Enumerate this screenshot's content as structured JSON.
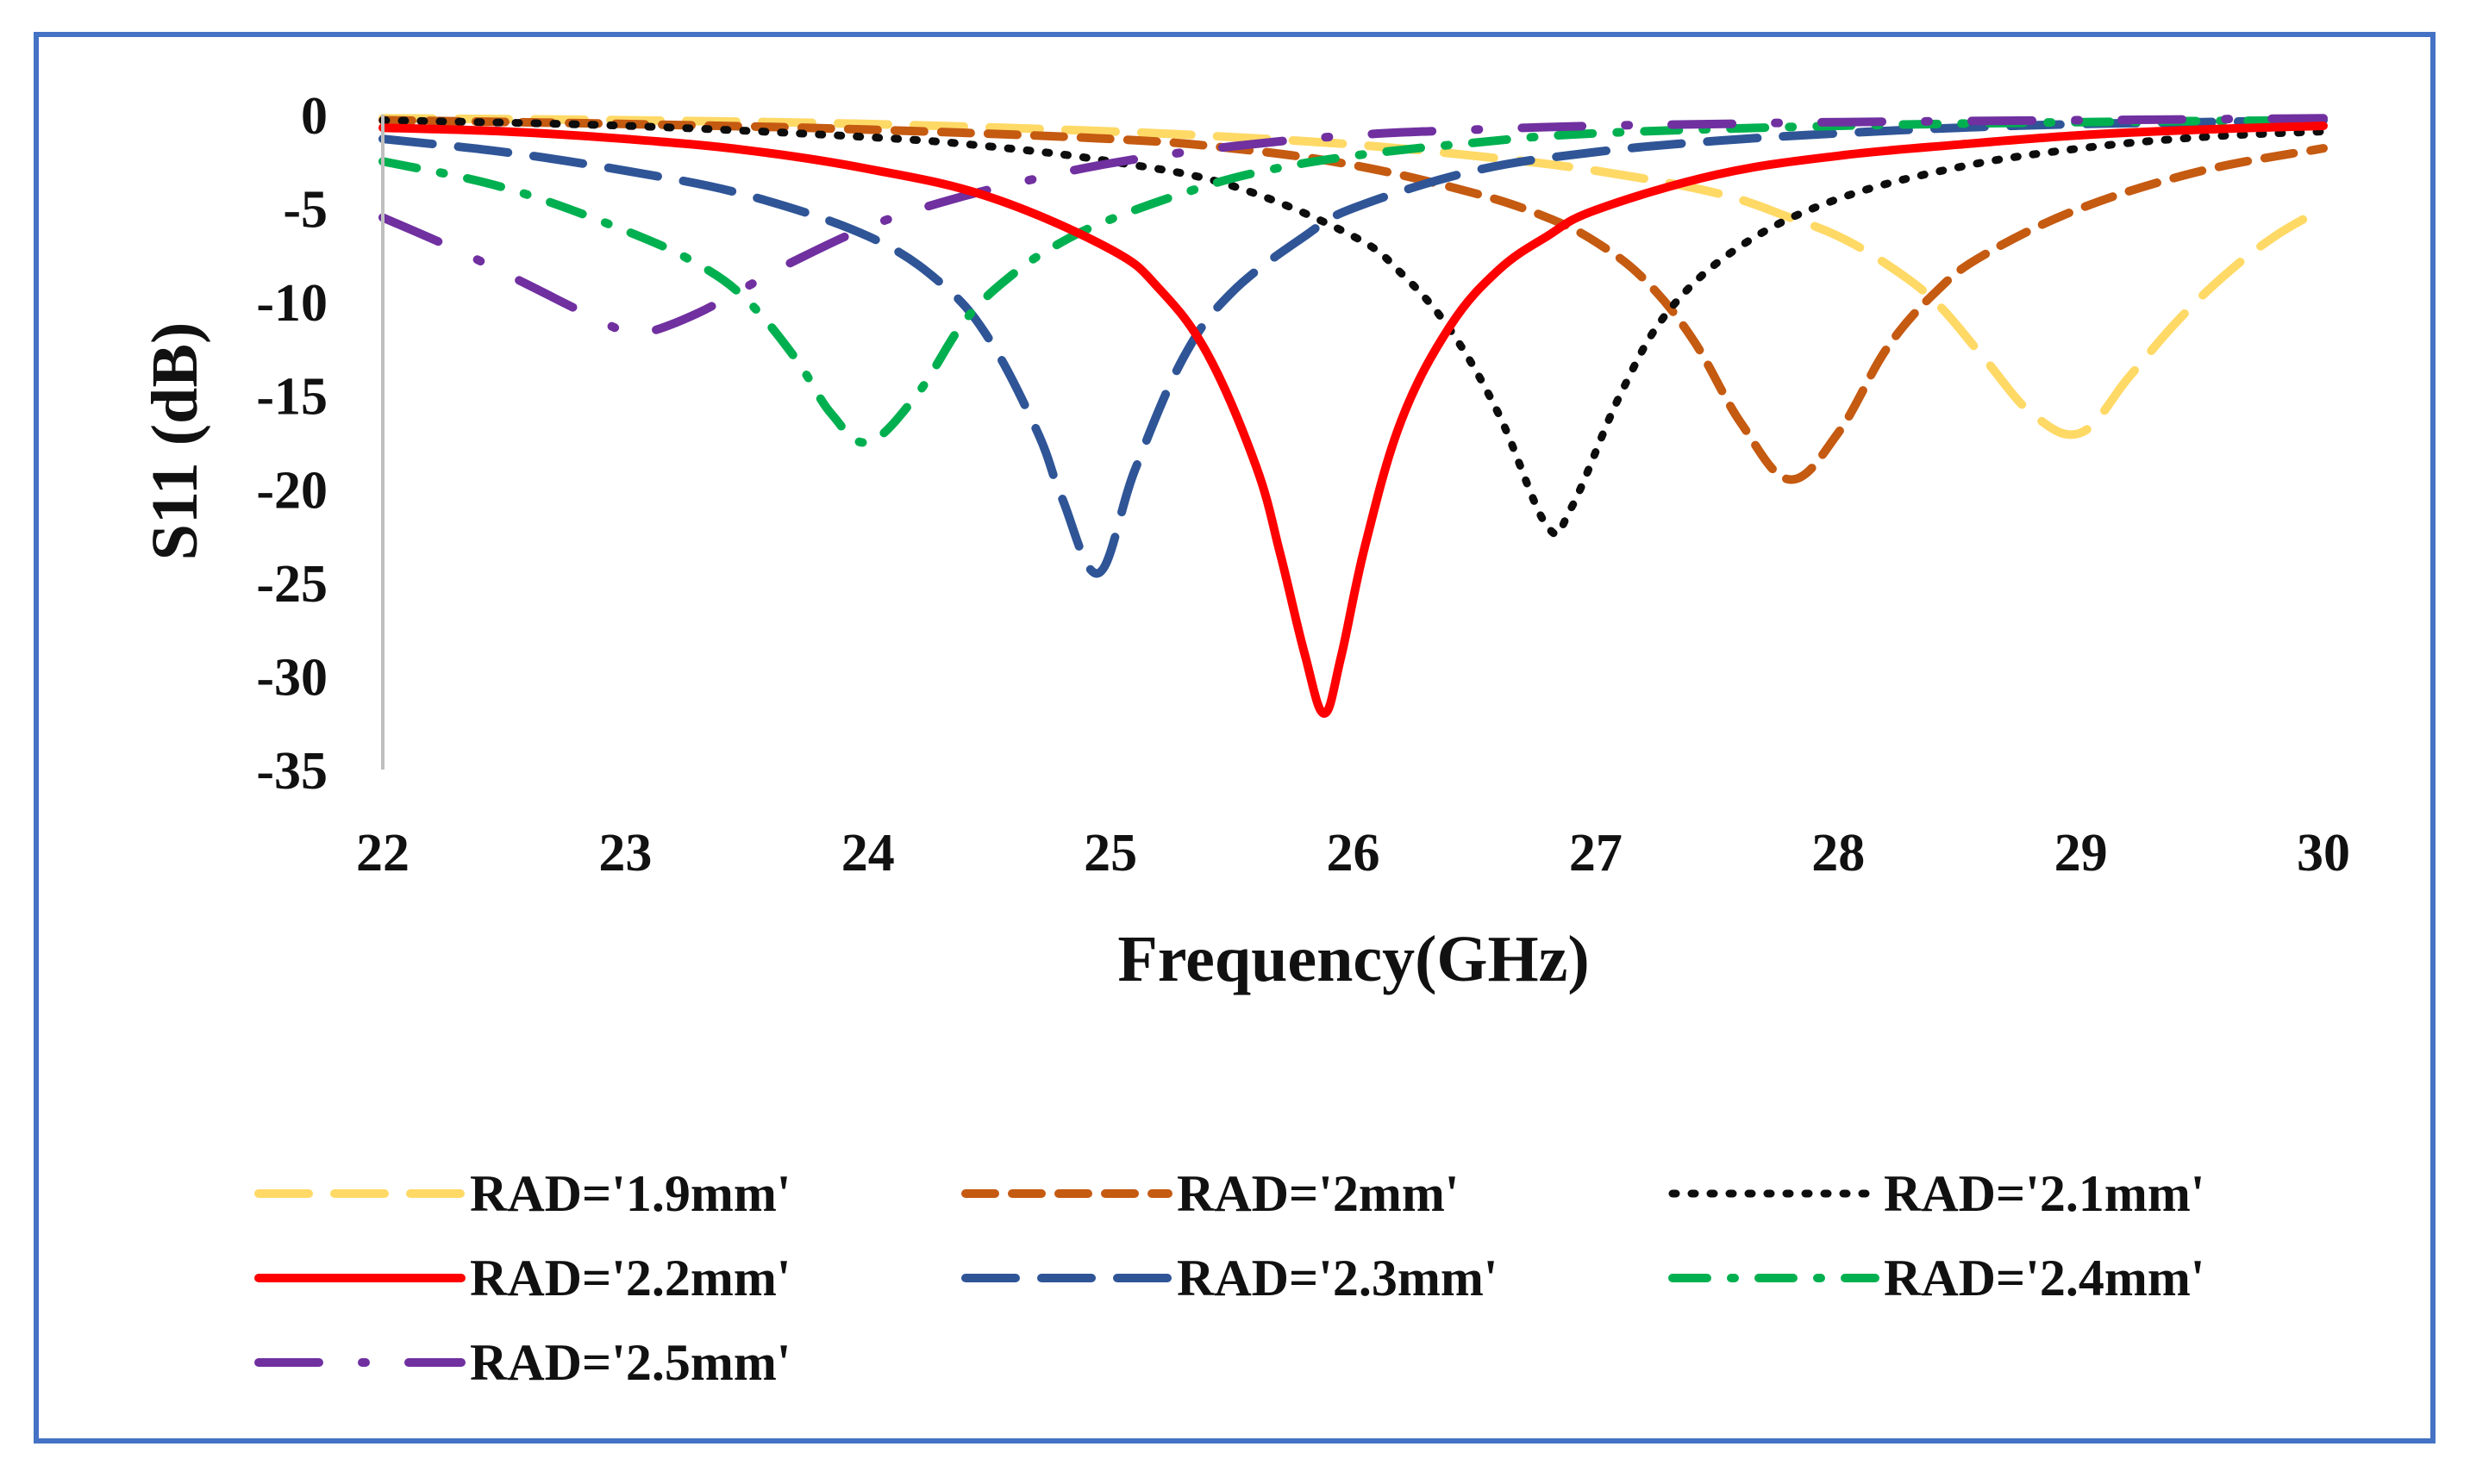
{
  "chart_data": {
    "type": "line",
    "title": "",
    "xlabel": "Frequency(GHz)",
    "ylabel": "S11 (dB)",
    "xlim": [
      22,
      30
    ],
    "ylim": [
      -35,
      0
    ],
    "xticks": [
      "22",
      "23",
      "24",
      "25",
      "26",
      "27",
      "28",
      "29",
      "30"
    ],
    "yticks": [
      "0",
      "-5",
      "-10",
      "-15",
      "-20",
      "-25",
      "-30",
      "-35"
    ],
    "grid": false,
    "legend_position": "bottom",
    "colors": {
      "frame": "#4472c4",
      "axis": "#bfbfbf"
    },
    "series": [
      {
        "name": "RAD='1.9mm'",
        "color": "#ffd966",
        "style": "long-dash",
        "x": [
          22,
          23,
          24,
          25,
          25.5,
          26,
          26.5,
          27,
          27.5,
          27.8,
          28,
          28.2,
          28.4,
          28.6,
          28.8,
          29,
          29.2,
          29.4,
          29.6,
          29.8,
          30
        ],
        "y": [
          -0.2,
          -0.3,
          -0.5,
          -0.9,
          -1.2,
          -1.6,
          -2.2,
          -3.0,
          -4.2,
          -5.5,
          -6.5,
          -8.0,
          -10.0,
          -13.0,
          -16.0,
          -17.0,
          -14.0,
          -11.0,
          -8.5,
          -6.5,
          -5.0
        ]
      },
      {
        "name": "RAD='2mm'",
        "color": "#c55a11",
        "style": "dash",
        "x": [
          22,
          23,
          24,
          25,
          25.5,
          26,
          26.5,
          26.8,
          27,
          27.2,
          27.4,
          27.6,
          27.8,
          28,
          28.2,
          28.4,
          28.6,
          29,
          29.5,
          30
        ],
        "y": [
          -0.3,
          -0.5,
          -0.8,
          -1.3,
          -1.8,
          -2.7,
          -4.2,
          -5.5,
          -6.8,
          -8.8,
          -12.0,
          -16.5,
          -19.5,
          -17.0,
          -12.5,
          -9.5,
          -7.5,
          -5.0,
          -3.0,
          -1.8
        ]
      },
      {
        "name": "RAD='2.1mm'",
        "color": "#0d0d0d",
        "style": "dot",
        "x": [
          22,
          23,
          24,
          24.5,
          25,
          25.5,
          26,
          26.2,
          26.4,
          26.6,
          26.8,
          26.9,
          27.1,
          27.3,
          27.6,
          28,
          28.5,
          29,
          29.5,
          30
        ],
        "y": [
          -0.3,
          -0.6,
          -1.2,
          -1.7,
          -2.5,
          -3.8,
          -6.5,
          -8.5,
          -11.5,
          -16.0,
          -22.0,
          -21.0,
          -15.0,
          -10.5,
          -7.0,
          -4.5,
          -2.8,
          -1.8,
          -1.2,
          -0.9
        ]
      },
      {
        "name": "RAD='2.2mm'",
        "color": "#ff0000",
        "style": "solid",
        "x": [
          22,
          22.5,
          23,
          23.5,
          24,
          24.5,
          25,
          25.2,
          25.4,
          25.6,
          25.7,
          25.8,
          25.88,
          25.95,
          26.05,
          26.2,
          26.4,
          26.6,
          26.8,
          27,
          27.5,
          28,
          28.5,
          29,
          29.5,
          30
        ],
        "y": [
          -0.7,
          -0.9,
          -1.3,
          -1.9,
          -2.9,
          -4.4,
          -7.2,
          -9.3,
          -12.8,
          -18.8,
          -23.5,
          -28.8,
          -32.0,
          -29.0,
          -23.0,
          -16.3,
          -11.3,
          -8.3,
          -6.5,
          -5.1,
          -3.2,
          -2.2,
          -1.6,
          -1.1,
          -0.8,
          -0.6
        ]
      },
      {
        "name": "RAD='2.3mm'",
        "color": "#2f5597",
        "style": "long-dash",
        "x": [
          22,
          22.5,
          23,
          23.5,
          24,
          24.3,
          24.5,
          24.7,
          24.8,
          24.95,
          25.1,
          25.3,
          25.5,
          25.8,
          26,
          26.5,
          27,
          27.5,
          28,
          28.5,
          29,
          29.5,
          30
        ],
        "y": [
          -1.3,
          -2.0,
          -3.0,
          -4.3,
          -6.5,
          -9.0,
          -12.0,
          -17.0,
          -20.5,
          -24.5,
          -19.0,
          -13.0,
          -9.5,
          -6.5,
          -5.0,
          -3.0,
          -2.0,
          -1.4,
          -1.0,
          -0.7,
          -0.5,
          -0.4,
          -0.3
        ]
      },
      {
        "name": "RAD='2.4mm'",
        "color": "#00b050",
        "style": "dash-dot",
        "x": [
          22,
          22.5,
          23,
          23.3,
          23.5,
          23.7,
          23.85,
          24,
          24.2,
          24.4,
          24.6,
          24.8,
          25,
          25.3,
          25.6,
          26,
          26.5,
          27,
          28,
          29,
          30
        ],
        "y": [
          -2.5,
          -3.9,
          -6.2,
          -8.0,
          -9.9,
          -13.0,
          -16.0,
          -17.5,
          -15.0,
          -11.0,
          -8.5,
          -6.8,
          -5.6,
          -4.2,
          -3.1,
          -2.2,
          -1.5,
          -1.0,
          -0.6,
          -0.4,
          -0.3
        ]
      },
      {
        "name": "RAD='2.5mm'",
        "color": "#7030a0",
        "style": "long-dash-dot",
        "x": [
          22,
          22.3,
          22.6,
          22.8,
          23,
          23.1,
          23.3,
          23.5,
          23.7,
          24,
          24.3,
          24.6,
          25,
          25.5,
          26,
          26.5,
          27,
          27.5,
          28,
          29,
          30
        ],
        "y": [
          -5.5,
          -7.2,
          -9.1,
          -10.4,
          -11.6,
          -11.6,
          -10.6,
          -9.2,
          -7.8,
          -6.0,
          -4.7,
          -3.7,
          -2.6,
          -1.7,
          -1.1,
          -0.8,
          -0.6,
          -0.5,
          -0.4,
          -0.3,
          -0.2
        ]
      }
    ]
  }
}
